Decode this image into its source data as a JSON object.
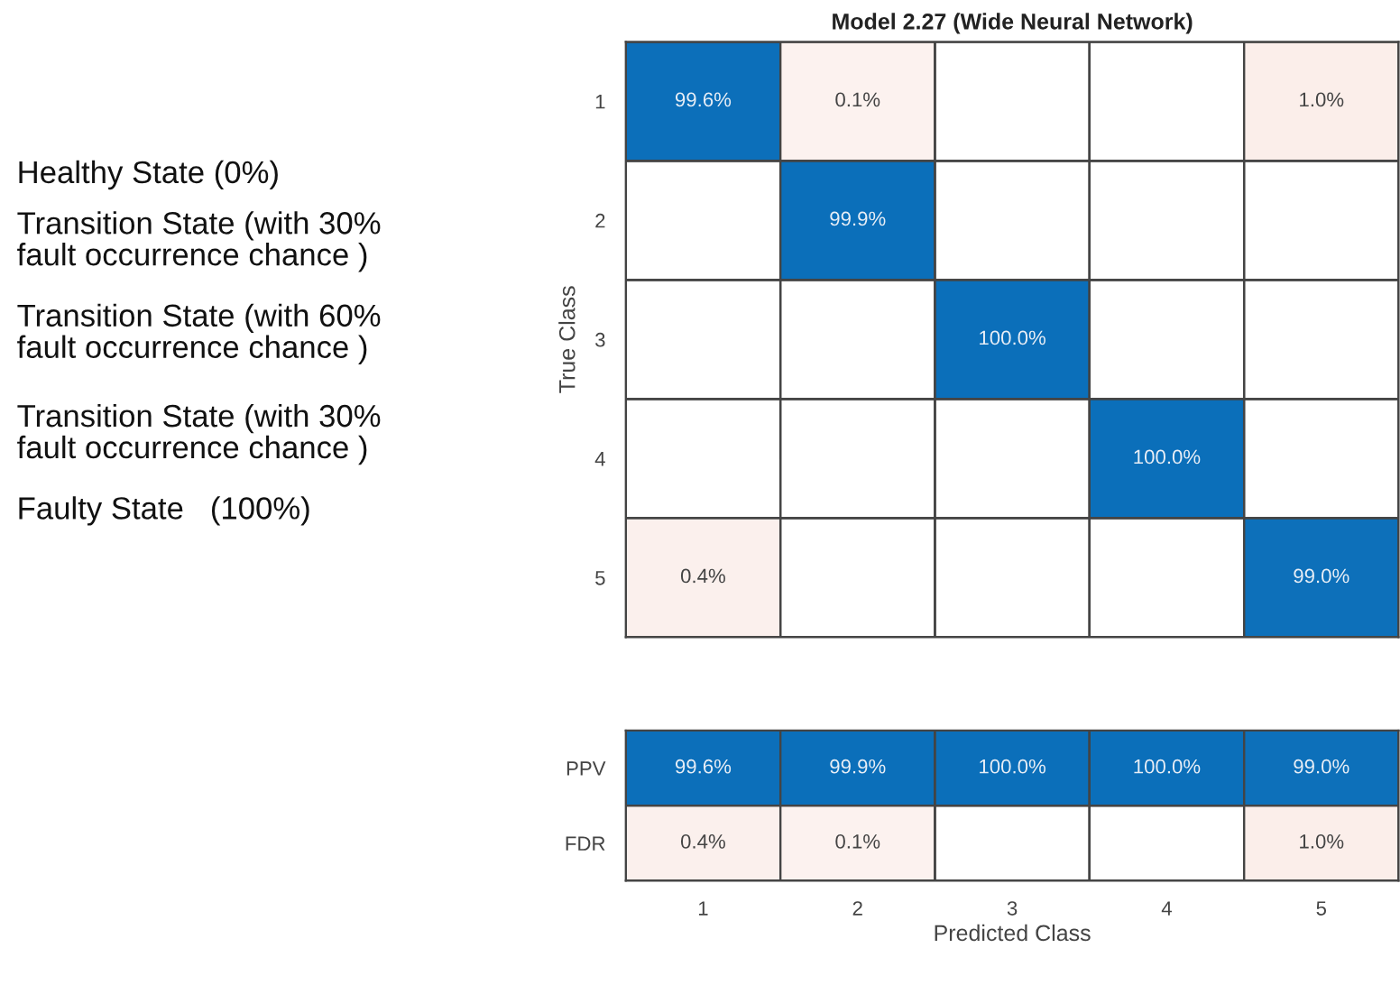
{
  "chart_data": [
    {
      "type": "heatmap",
      "title": "Model 2.27 (Wide Neural Network)",
      "ylabel": "True Class",
      "categories": [
        "1",
        "2",
        "3",
        "4",
        "5"
      ],
      "y_categories": [
        "1",
        "2",
        "3",
        "4",
        "5"
      ],
      "tick_labels": "y",
      "cells": [
        [
          99.6,
          0.1,
          null,
          null,
          1.0
        ],
        [
          null,
          99.9,
          null,
          null,
          null
        ],
        [
          null,
          null,
          100.0,
          null,
          null
        ],
        [
          null,
          null,
          null,
          100.0,
          null
        ],
        [
          0.4,
          null,
          null,
          null,
          99.0
        ]
      ],
      "cell_labels": [
        [
          "99.6%",
          "0.1%",
          null,
          null,
          "1.0%"
        ],
        [
          null,
          "99.9%",
          null,
          null,
          null
        ],
        [
          null,
          null,
          "100.0%",
          null,
          null
        ],
        [
          null,
          null,
          null,
          "100.0%",
          null
        ],
        [
          "0.4%",
          null,
          null,
          null,
          "99.0%"
        ]
      ],
      "annotations": [
        "Healthy State (0%)",
        "Transition State (with 30%\nfault occurrence chance )",
        "Transition State (with 60%\nfault occurrence chance )",
        "Transition State (with 30%\nfault occurrence chance )",
        "Faulty State   (100%)"
      ]
    },
    {
      "type": "heatmap",
      "xlabel": "Predicted Class",
      "categories": [
        "1",
        "2",
        "3",
        "4",
        "5"
      ],
      "y_categories": [
        "PPV",
        "FDR"
      ],
      "cells": [
        [
          99.6,
          99.9,
          100.0,
          100.0,
          99.0
        ],
        [
          0.4,
          0.1,
          null,
          null,
          1.0
        ]
      ],
      "cell_labels": [
        [
          "99.6%",
          "99.9%",
          "100.0%",
          "100.0%",
          "99.0%"
        ],
        [
          "0.4%",
          "0.1%",
          null,
          null,
          "1.0%"
        ]
      ]
    }
  ]
}
